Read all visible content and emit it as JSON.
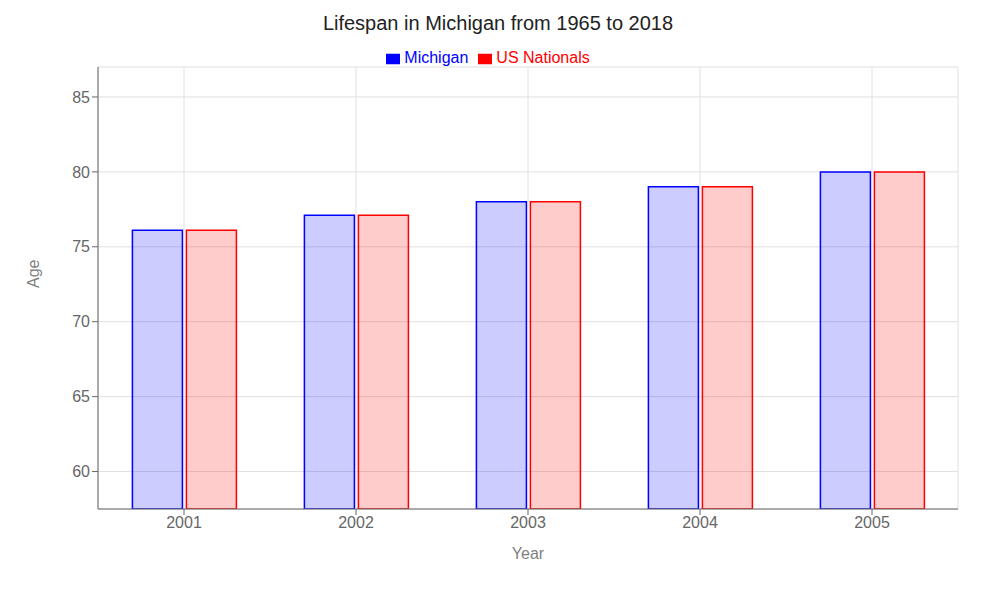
{
  "chart_data": {
    "type": "bar",
    "title": "Lifespan in Michigan from 1965 to 2018",
    "x_label": "Year",
    "y_label": "Age",
    "categories": [
      "2001",
      "2002",
      "2003",
      "2004",
      "2005"
    ],
    "series": [
      {
        "name": "Michigan",
        "color": "#0000ff",
        "values": [
          76.1,
          77.1,
          78.0,
          79.0,
          80.0
        ]
      },
      {
        "name": "US Nationals",
        "color": "#ff0000",
        "values": [
          76.1,
          77.1,
          78.0,
          79.0,
          80.0
        ]
      }
    ],
    "ylim": [
      57.5,
      87
    ],
    "yticks": [
      60,
      65,
      70,
      75,
      80,
      85
    ],
    "grid": true,
    "legend": "top"
  }
}
